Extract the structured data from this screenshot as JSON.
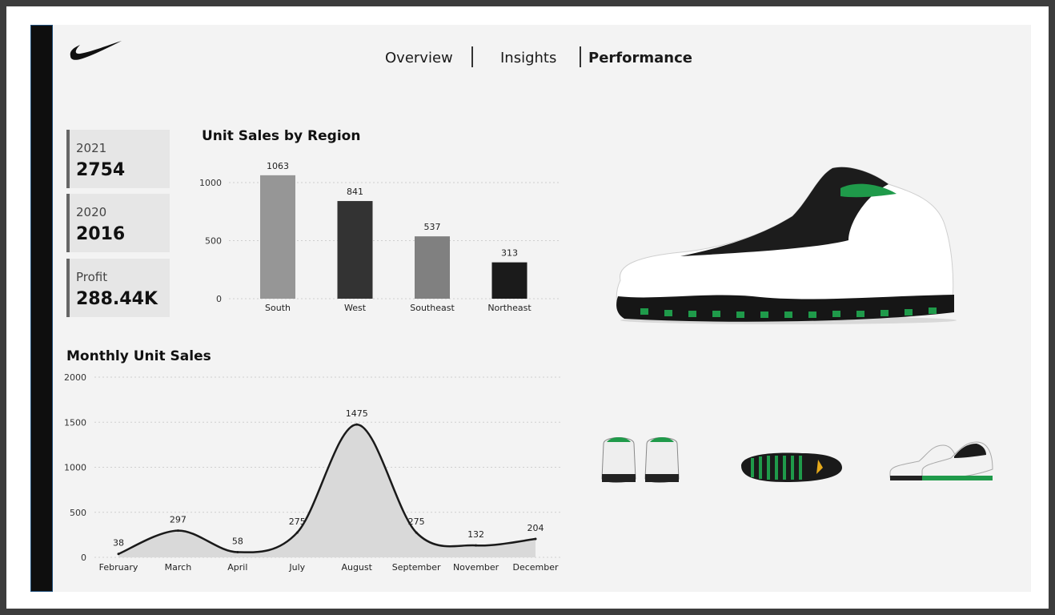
{
  "nav": {
    "items": [
      "Overview",
      "Insights",
      "Performance"
    ],
    "active": "Performance"
  },
  "kpis": [
    {
      "label": "2021",
      "value": "2754"
    },
    {
      "label": "2020",
      "value": "2016"
    },
    {
      "label": "Profit",
      "value": "288.44K"
    }
  ],
  "colors": {
    "bar_colors": [
      "#969696",
      "#333333",
      "#808080",
      "#1b1b1b"
    ],
    "area_fill": "#d9d9d9",
    "line": "#1a1a1a"
  },
  "chart_data": [
    {
      "type": "bar",
      "title": "Unit Sales by Region",
      "categories": [
        "South",
        "West",
        "Southeast",
        "Northeast"
      ],
      "values": [
        1063,
        841,
        537,
        313
      ],
      "ylim": [
        0,
        1100
      ],
      "yticks": [
        0,
        500,
        1000
      ],
      "grid": true
    },
    {
      "type": "area",
      "title": "Monthly Unit Sales",
      "categories": [
        "February",
        "March",
        "April",
        "July",
        "August",
        "September",
        "November",
        "December"
      ],
      "values": [
        38,
        297,
        58,
        275,
        1475,
        275,
        132,
        204
      ],
      "ylim": [
        0,
        2000
      ],
      "yticks": [
        0,
        500,
        1000,
        1500,
        2000
      ],
      "grid": true
    }
  ]
}
